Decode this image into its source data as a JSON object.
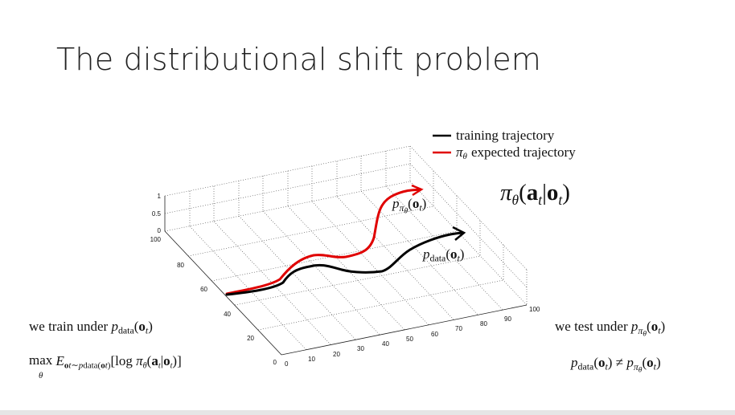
{
  "slide": {
    "title": "The distributional shift problem"
  },
  "legend": {
    "training": "training trajectory",
    "expected_symbol": "π",
    "expected_sub": "θ",
    "expected": "expected trajectory"
  },
  "labels": {
    "left_train_text": "we train under",
    "right_test_text": "we test under",
    "p": "p",
    "data": "data",
    "o": "o",
    "t": "t",
    "pi": "π",
    "theta": "θ",
    "a": "a",
    "max": "max",
    "E": "E",
    "sim": "∼",
    "log": "log",
    "neq": "≠"
  },
  "chart_data": {
    "type": "line",
    "title": "",
    "series": [
      {
        "name": "training trajectory",
        "color": "#000000"
      },
      {
        "name": "expected trajectory",
        "color": "#e00000"
      }
    ],
    "z_ticks": [
      "0",
      "0.5",
      "1"
    ],
    "y_ticks": [
      "100",
      "80",
      "60",
      "40",
      "20",
      "0"
    ],
    "x_ticks": [
      "0",
      "10",
      "20",
      "30",
      "40",
      "50",
      "60",
      "70",
      "80",
      "90",
      "100"
    ],
    "grid": true
  }
}
